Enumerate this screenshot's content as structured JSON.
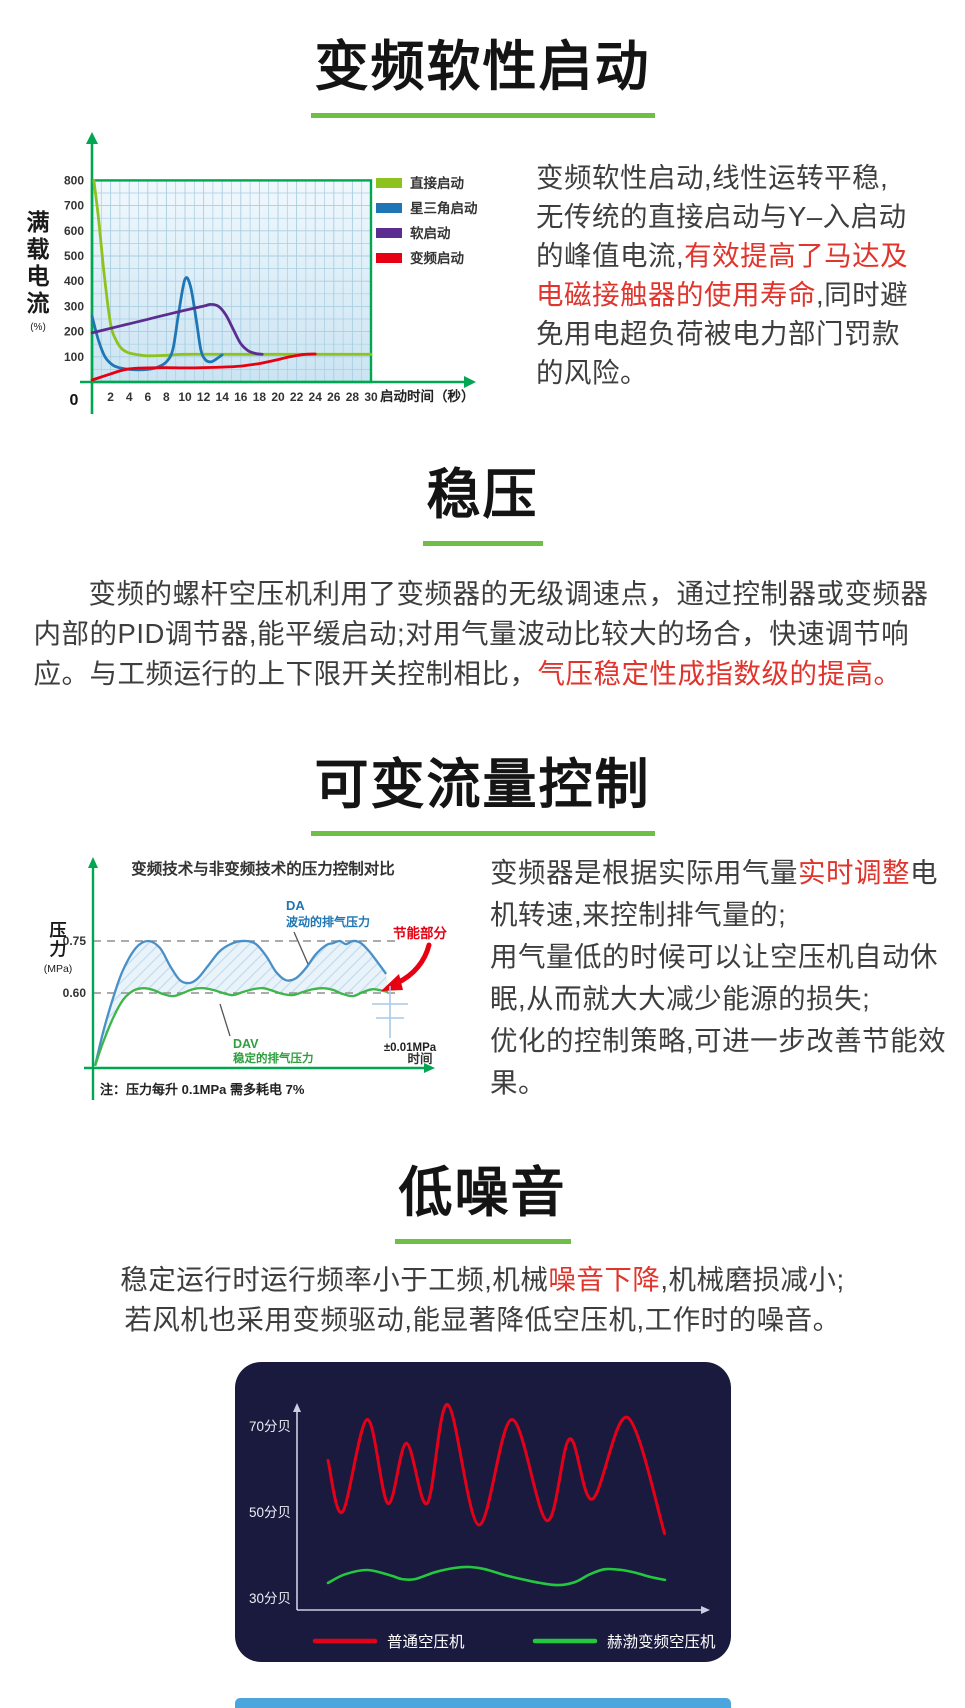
{
  "page": {
    "accent_green": "#6fbe45",
    "axis_green": "#00a651",
    "highlight_red": "#e0342c",
    "noise_card_bg": "#1a1a3e"
  },
  "sections": {
    "soft_start": {
      "title": "变频软性启动",
      "paragraph": [
        {
          "text": "变频软性启动,线性运转平稳,无传统的直接启动与Y–入启动的峰值电流,"
        },
        {
          "text": "有效提高了马达及电磁接触器的使用寿命",
          "red": true
        },
        {
          "text": ",同时避免用电超负荷被电力部门罚款的风险。"
        }
      ]
    },
    "stable_pressure": {
      "title": "稳压",
      "paragraph": [
        {
          "text": "变频的螺杆空压机利用了变频器的无级调速点，通过控制器或变频器内部的PID调节器,能平缓启动;对用气量波动比较大的场合，快速调节响应。与工频运行的上下限开关控制相比，"
        },
        {
          "text": "气压稳定性成指数级的提高。",
          "red": true
        }
      ]
    },
    "variable_flow": {
      "title": "可变流量控制",
      "paragraph": [
        {
          "text": "变频器是根据实际用气量"
        },
        {
          "text": "实时调整",
          "red": true
        },
        {
          "text": "电机转速,来控制排气量的;",
          "br": true
        },
        {
          "text": "用气量低的时候可以让空压机自动休眠,从而就大大减少能源的损失;",
          "br": true
        },
        {
          "text": "优化的控制策略,可进一步改善节能效果。"
        }
      ]
    },
    "low_noise": {
      "title": "低噪音",
      "paragraph": [
        {
          "text": "稳定运行时运行频率小于工频,机械"
        },
        {
          "text": "噪音下降",
          "red": true
        },
        {
          "text": ",机械磨损减小;",
          "br": true
        },
        {
          "text": "若风机也采用变频驱动,能显著降低空压机,工作时的噪音。"
        }
      ]
    }
  },
  "chart_data": [
    {
      "id": "startup_current",
      "type": "line",
      "ylabel": "满载电流",
      "ylabel_unit": "(%)",
      "xlabel": "启动时间（秒）",
      "x_origin": "0",
      "xlim": [
        0,
        30
      ],
      "ylim": [
        0,
        850
      ],
      "y_ticks": [
        100,
        200,
        300,
        400,
        500,
        600,
        700,
        800
      ],
      "x_ticks": [
        2,
        4,
        6,
        8,
        10,
        12,
        14,
        16,
        18,
        20,
        22,
        24,
        26,
        28,
        30
      ],
      "grid": true,
      "legend_position": "right",
      "axis_color": "#00a651",
      "series": [
        {
          "name": "直接启动",
          "color": "#8dc21f",
          "points": [
            [
              0.2,
              800
            ],
            [
              0.7,
              650
            ],
            [
              1.3,
              430
            ],
            [
              2,
              230
            ],
            [
              2.6,
              165
            ],
            [
              3.2,
              132
            ],
            [
              4,
              115
            ],
            [
              5,
              108
            ],
            [
              6,
              104
            ],
            [
              8,
              106
            ],
            [
              10,
              110
            ],
            [
              14,
              110
            ],
            [
              18,
              110
            ],
            [
              22,
              110
            ],
            [
              26,
              110
            ],
            [
              30,
              110
            ]
          ]
        },
        {
          "name": "星三角启动",
          "color": "#1f76b4",
          "points": [
            [
              0,
              262
            ],
            [
              0.7,
              165
            ],
            [
              1.4,
              100
            ],
            [
              2.2,
              68
            ],
            [
              3,
              56
            ],
            [
              4,
              50
            ],
            [
              5,
              48
            ],
            [
              6,
              50
            ],
            [
              7,
              58
            ],
            [
              8,
              80
            ],
            [
              8.7,
              130
            ],
            [
              9.3,
              270
            ],
            [
              10,
              408
            ],
            [
              10.6,
              378
            ],
            [
              11.2,
              248
            ],
            [
              11.7,
              128
            ],
            [
              12.2,
              88
            ],
            [
              12.8,
              80
            ],
            [
              13.4,
              92
            ],
            [
              14,
              108
            ]
          ]
        },
        {
          "name": "软启动",
          "color": "#5c2d91",
          "points": [
            [
              0,
              195
            ],
            [
              2,
              213
            ],
            [
              4,
              231
            ],
            [
              6,
              249
            ],
            [
              8,
              267
            ],
            [
              10,
              285
            ],
            [
              12,
              301
            ],
            [
              12.8,
              308
            ],
            [
              13.6,
              300
            ],
            [
              14.4,
              266
            ],
            [
              15.2,
              208
            ],
            [
              16,
              152
            ],
            [
              16.8,
              124
            ],
            [
              17.6,
              113
            ],
            [
              18.3,
              110
            ]
          ]
        },
        {
          "name": "变频启动",
          "color": "#e60012",
          "points": [
            [
              0,
              8
            ],
            [
              1,
              20
            ],
            [
              2,
              32
            ],
            [
              3,
              44
            ],
            [
              4,
              52
            ],
            [
              5,
              55
            ],
            [
              6,
              56
            ],
            [
              8,
              57
            ],
            [
              10,
              56
            ],
            [
              12,
              57
            ],
            [
              14,
              59
            ],
            [
              16,
              63
            ],
            [
              17,
              68
            ],
            [
              18,
              73
            ],
            [
              19,
              81
            ],
            [
              20,
              89
            ],
            [
              21,
              98
            ],
            [
              22,
              105
            ],
            [
              23,
              110
            ],
            [
              24,
              111
            ]
          ]
        }
      ]
    },
    {
      "id": "pressure_control",
      "type": "line",
      "title": "变频技术与非变频技术的压力控制对比",
      "ylabel": "压力",
      "ylabel_unit": "(MPa)",
      "xlabel": "时间",
      "y_ticks": [
        0.75,
        0.6
      ],
      "note": "注：压力每升 0.1MPa 需多耗电 7%",
      "saving_label": "节能部分",
      "tolerance_label": "±0.01MPa",
      "axis_color": "#00a651",
      "series": [
        {
          "short": "DA",
          "desc": "波动的排气压力",
          "color": "#4a90c8",
          "points": [
            [
              0.7,
              0.39
            ],
            [
              3.3,
              0.485
            ],
            [
              6.7,
              0.586
            ],
            [
              10,
              0.666
            ],
            [
              14.3,
              0.73
            ],
            [
              18.3,
              0.75
            ],
            [
              22.3,
              0.73
            ],
            [
              25.7,
              0.678
            ],
            [
              29,
              0.637
            ],
            [
              32.3,
              0.629
            ],
            [
              35,
              0.643
            ],
            [
              38.3,
              0.678
            ],
            [
              42.3,
              0.721
            ],
            [
              46.7,
              0.744
            ],
            [
              51,
              0.75
            ],
            [
              54.3,
              0.741
            ],
            [
              57.7,
              0.707
            ],
            [
              61,
              0.661
            ],
            [
              64.3,
              0.637
            ],
            [
              67.7,
              0.643
            ],
            [
              71,
              0.672
            ],
            [
              74.3,
              0.712
            ],
            [
              77.7,
              0.738
            ],
            [
              80,
              0.744
            ],
            [
              82.3,
              0.75
            ],
            [
              84.3,
              0.741
            ],
            [
              86.7,
              0.75
            ],
            [
              89.3,
              0.744
            ],
            [
              92,
              0.721
            ],
            [
              95,
              0.687
            ],
            [
              97.7,
              0.655
            ]
          ]
        },
        {
          "short": "DAV",
          "desc": "稳定的排气压力",
          "color": "#3cb54a",
          "points": [
            [
              0.7,
              0.39
            ],
            [
              3.3,
              0.456
            ],
            [
              6.7,
              0.528
            ],
            [
              10,
              0.58
            ],
            [
              13.3,
              0.606
            ],
            [
              16.7,
              0.614
            ],
            [
              20,
              0.609
            ],
            [
              23.3,
              0.597
            ],
            [
              26.7,
              0.591
            ],
            [
              30,
              0.6
            ],
            [
              33.3,
              0.611
            ],
            [
              36.7,
              0.614
            ],
            [
              40,
              0.609
            ],
            [
              43.3,
              0.6
            ],
            [
              46.7,
              0.594
            ],
            [
              50,
              0.603
            ],
            [
              53.3,
              0.611
            ],
            [
              56.7,
              0.614
            ],
            [
              60,
              0.606
            ],
            [
              63.3,
              0.597
            ],
            [
              66.7,
              0.594
            ],
            [
              70,
              0.603
            ],
            [
              73.3,
              0.611
            ],
            [
              76.7,
              0.614
            ],
            [
              80,
              0.609
            ],
            [
              83.3,
              0.597
            ],
            [
              86.7,
              0.591
            ],
            [
              90,
              0.603
            ],
            [
              93.3,
              0.611
            ],
            [
              96.7,
              0.606
            ],
            [
              98.3,
              0.603
            ]
          ]
        }
      ]
    },
    {
      "id": "noise_level",
      "type": "line",
      "y_ticks": [
        "70分贝",
        "50分贝",
        "30分贝"
      ],
      "y_tick_values": [
        70,
        50,
        30
      ],
      "series": [
        {
          "name": "普通空压机",
          "color": "#e50019",
          "points": [
            [
              7.5,
              62
            ],
            [
              11,
              50
            ],
            [
              17,
              71.5
            ],
            [
              22,
              52
            ],
            [
              26.5,
              66
            ],
            [
              31.5,
              52
            ],
            [
              36.5,
              75
            ],
            [
              44,
              47
            ],
            [
              52,
              71.5
            ],
            [
              60.5,
              48
            ],
            [
              66,
              67
            ],
            [
              71.5,
              53
            ],
            [
              80,
              72
            ],
            [
              89,
              45
            ]
          ]
        },
        {
          "name": "赫渤变频空压机",
          "color": "#24c83e",
          "points": [
            [
              7.5,
              33.5
            ],
            [
              11.6,
              35.5
            ],
            [
              17,
              36.5
            ],
            [
              22.5,
              35.3
            ],
            [
              25.4,
              34.4
            ],
            [
              28.6,
              34.4
            ],
            [
              33.4,
              36
            ],
            [
              38.3,
              37
            ],
            [
              41.9,
              37.2
            ],
            [
              45.5,
              36.7
            ],
            [
              50.4,
              35.3
            ],
            [
              55.2,
              34.2
            ],
            [
              58.8,
              33.5
            ],
            [
              63.2,
              33
            ],
            [
              67.3,
              33.7
            ],
            [
              70.9,
              35.5
            ],
            [
              74.6,
              36.7
            ],
            [
              78.7,
              36.5
            ],
            [
              82.3,
              35.8
            ],
            [
              85.5,
              34.9
            ],
            [
              89.1,
              34.2
            ]
          ]
        }
      ]
    }
  ]
}
